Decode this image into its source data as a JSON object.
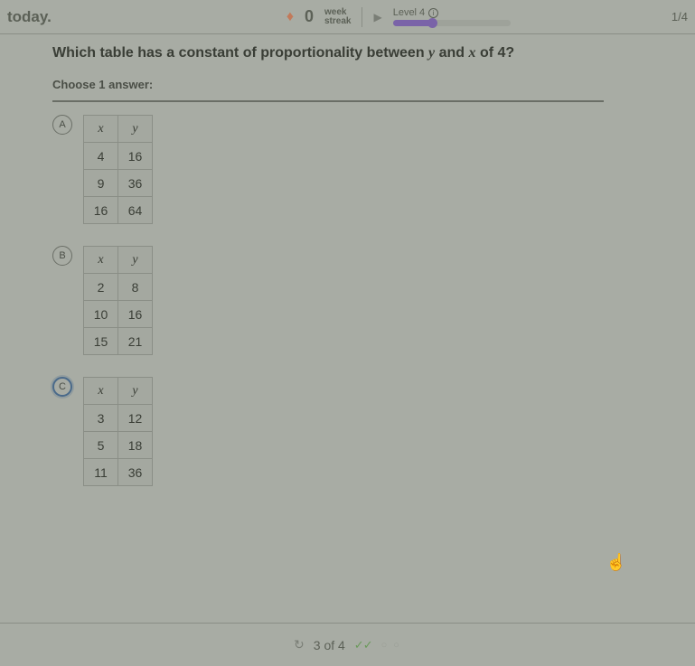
{
  "topbar": {
    "today": "today.",
    "streak_value": "0",
    "streak_line1": "week",
    "streak_line2": "streak",
    "level_label": "Level 4",
    "progress_pct": 33,
    "page_counter": "1/4"
  },
  "question": {
    "prefix": "Which table has a constant of proportionality between ",
    "var1": "y",
    "mid": " and ",
    "var2": "x",
    "of": " of ",
    "k": "4",
    "q": "?"
  },
  "choose_label": "Choose 1 answer:",
  "options": [
    {
      "letter": "A",
      "selected": false,
      "headers": [
        "x",
        "y"
      ],
      "rows": [
        [
          "4",
          "16"
        ],
        [
          "9",
          "36"
        ],
        [
          "16",
          "64"
        ]
      ]
    },
    {
      "letter": "B",
      "selected": false,
      "headers": [
        "x",
        "y"
      ],
      "rows": [
        [
          "2",
          "8"
        ],
        [
          "10",
          "16"
        ],
        [
          "15",
          "21"
        ]
      ]
    },
    {
      "letter": "C",
      "selected": true,
      "headers": [
        "x",
        "y"
      ],
      "rows": [
        [
          "3",
          "12"
        ],
        [
          "5",
          "18"
        ],
        [
          "11",
          "36"
        ]
      ]
    }
  ],
  "footer": {
    "progress_text": "3 of 4",
    "checks": "✓✓",
    "pending": "○ ○"
  },
  "colors": {
    "bg": "#a8aca4",
    "accent": "#7a63a8",
    "selected": "#4a6a8a"
  }
}
